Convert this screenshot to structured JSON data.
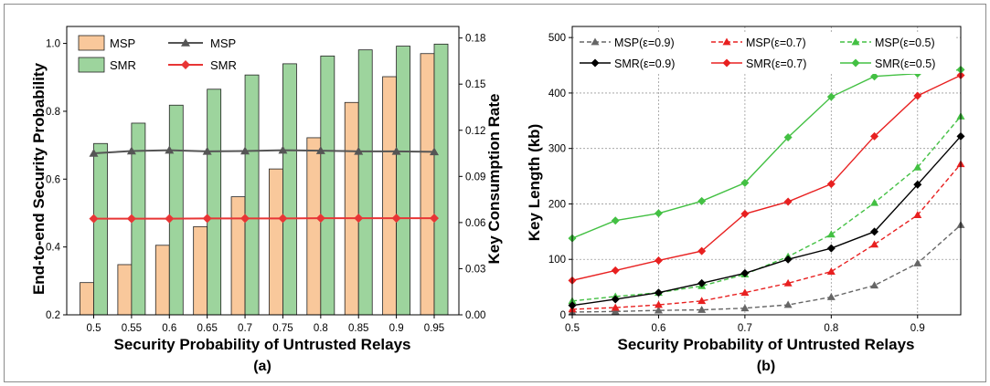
{
  "chart_data": [
    {
      "type": "bar",
      "panel_label": "(a)",
      "xlabel": "Security Probability of Untrusted Relays",
      "ylabel": "End-to-end Security Probability",
      "y2label": "Key Consumption Rate",
      "categories": [
        "0.5",
        "0.55",
        "0.6",
        "0.65",
        "0.7",
        "0.75",
        "0.8",
        "0.85",
        "0.9",
        "0.95"
      ],
      "ylim": [
        0.2,
        1.05
      ],
      "y2lim": [
        0,
        0.1875
      ],
      "yticks": [
        "0.2",
        "0.4",
        "0.6",
        "0.8",
        "1.0"
      ],
      "y2ticks": [
        "0.00",
        "0.03",
        "0.06",
        "0.09",
        "0.12",
        "0.15",
        "0.18"
      ],
      "legend_position": "top-left",
      "series": [
        {
          "name": "MSP",
          "kind": "bar",
          "axis": "left",
          "color": "#f9c89b",
          "values": [
            0.295,
            0.348,
            0.405,
            0.46,
            0.548,
            0.63,
            0.722,
            0.826,
            0.902,
            0.97
          ]
        },
        {
          "name": "SMR",
          "kind": "bar",
          "axis": "left",
          "color": "#9dd49d",
          "values": [
            0.705,
            0.765,
            0.818,
            0.865,
            0.907,
            0.94,
            0.963,
            0.981,
            0.992,
            0.998
          ]
        },
        {
          "name": "MSP",
          "kind": "line",
          "marker": "triangle",
          "axis": "right",
          "color": "#555555",
          "values": [
            0.105,
            0.1065,
            0.107,
            0.1063,
            0.1065,
            0.107,
            0.1067,
            0.1063,
            0.1063,
            0.106
          ]
        },
        {
          "name": "SMR",
          "kind": "line",
          "marker": "diamond",
          "axis": "right",
          "color": "#e83535",
          "values": [
            0.0625,
            0.0625,
            0.0625,
            0.0627,
            0.0627,
            0.0627,
            0.0628,
            0.0628,
            0.0628,
            0.0628
          ]
        }
      ]
    },
    {
      "type": "line",
      "panel_label": "(b)",
      "xlabel": "Security Probability of Untrusted Relays",
      "ylabel": "Key Length (kb)",
      "x": [
        0.5,
        0.55,
        0.6,
        0.65,
        0.7,
        0.75,
        0.8,
        0.85,
        0.9,
        0.95
      ],
      "xlim": [
        0.5,
        0.95
      ],
      "ylim": [
        0,
        520
      ],
      "xticks": [
        "0.5",
        "0.6",
        "0.7",
        "0.8",
        "0.9"
      ],
      "yticks": [
        "0",
        "100",
        "200",
        "300",
        "400",
        "500"
      ],
      "grid": true,
      "legend_position": "top",
      "series": [
        {
          "name": "MSP(ε=0.9)",
          "color": "#666666",
          "dash": true,
          "marker": "triangle",
          "values": [
            5,
            6,
            8,
            9,
            12,
            18,
            32,
            53,
            93,
            162
          ]
        },
        {
          "name": "MSP(ε=0.7)",
          "color": "#e82020",
          "dash": true,
          "marker": "triangle",
          "values": [
            10,
            13,
            18,
            25,
            40,
            57,
            78,
            127,
            180,
            272
          ]
        },
        {
          "name": "MSP(ε=0.5)",
          "color": "#43c043",
          "dash": true,
          "marker": "triangle",
          "values": [
            25,
            33,
            40,
            52,
            73,
            105,
            145,
            202,
            266,
            358
          ]
        },
        {
          "name": "SMR(ε=0.9)",
          "color": "#000000",
          "dash": false,
          "marker": "diamond",
          "values": [
            17,
            28,
            40,
            57,
            75,
            100,
            120,
            150,
            235,
            322
          ]
        },
        {
          "name": "SMR(ε=0.7)",
          "color": "#e82020",
          "dash": false,
          "marker": "diamond",
          "values": [
            62,
            80,
            98,
            115,
            182,
            204,
            236,
            322,
            395,
            432
          ]
        },
        {
          "name": "SMR(ε=0.5)",
          "color": "#43c043",
          "dash": false,
          "marker": "diamond",
          "values": [
            138,
            170,
            183,
            205,
            238,
            320,
            393,
            430,
            435,
            442
          ]
        }
      ]
    }
  ]
}
